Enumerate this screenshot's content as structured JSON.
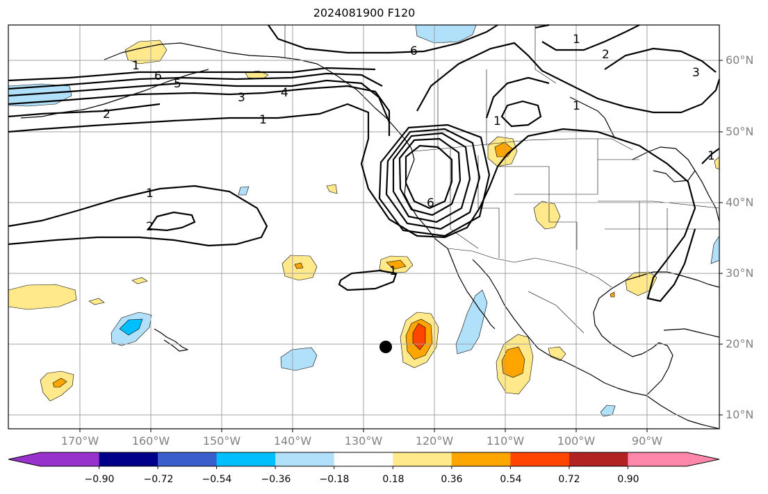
{
  "title": "2024081900 F120",
  "lat_labels": [
    "60°N",
    "50°N",
    "40°N",
    "30°N",
    "20°N",
    "10°N"
  ],
  "lon_labels": [
    "170°W",
    "160°W",
    "150°W",
    "140°W",
    "130°W",
    "120°W",
    "110°W",
    "100°W",
    "90°W"
  ],
  "contour_labels": [
    "6",
    "5",
    "4",
    "3",
    "2",
    "1",
    "1",
    "2",
    "1",
    "6",
    "1",
    "1",
    "2",
    "3",
    "1",
    "1",
    "6",
    "1"
  ],
  "colorbar": {
    "colors": [
      "#9932cc",
      "#00008b",
      "#3a5fcd",
      "#00bfff",
      "#b0e0fa",
      "#ffffff",
      "#ffe98a",
      "#ffa500",
      "#ff4500",
      "#b22222",
      "#ff88aa"
    ],
    "under_color": "#9932cc",
    "over_color": "#ff88aa",
    "tick_labels": [
      "−0.90",
      "−0.72",
      "−0.54",
      "−0.36",
      "−0.18",
      "0.18",
      "0.36",
      "0.54",
      "0.72",
      "0.90"
    ]
  },
  "marker": {
    "name": "black dot",
    "lon": -127.0,
    "lat": 19.4
  }
}
